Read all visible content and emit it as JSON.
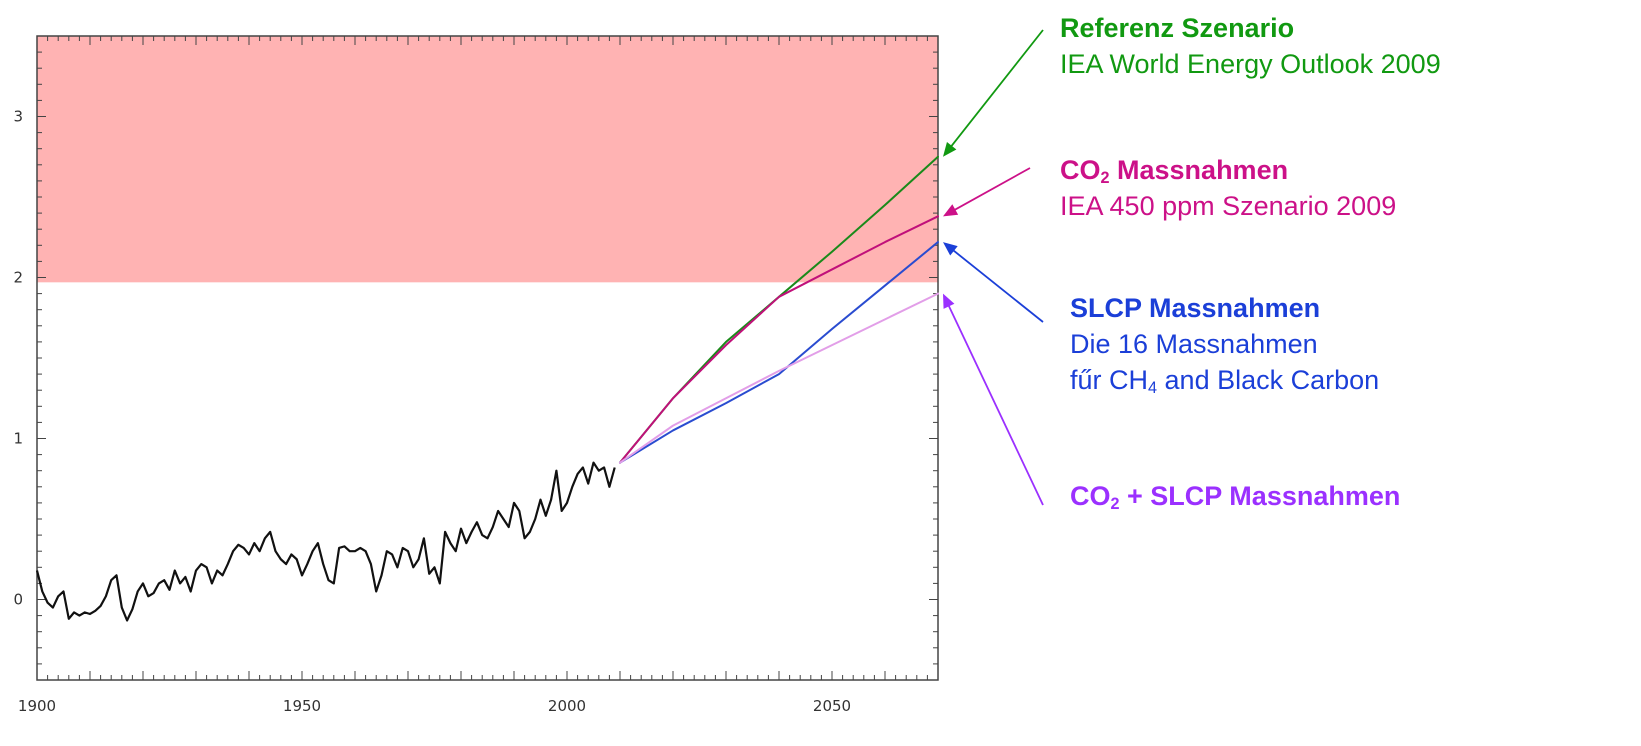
{
  "chart_data": {
    "type": "line",
    "title": "",
    "xlabel": "",
    "ylabel": "",
    "xlim": [
      1900,
      2070
    ],
    "ylim": [
      -0.5,
      3.5
    ],
    "xticks": [
      "1900",
      "1950",
      "2000",
      "2050"
    ],
    "yticks": [
      "0",
      "1",
      "2",
      "3"
    ],
    "grid": false,
    "shaded_region": {
      "y_from": 1.97,
      "y_to": 3.5,
      "color": "#ffb3b3"
    },
    "observed": {
      "color": "#111111",
      "x": [
        1900,
        1901,
        1902,
        1903,
        1904,
        1905,
        1906,
        1907,
        1908,
        1909,
        1910,
        1911,
        1912,
        1913,
        1914,
        1915,
        1916,
        1917,
        1918,
        1919,
        1920,
        1921,
        1922,
        1923,
        1924,
        1925,
        1926,
        1927,
        1928,
        1929,
        1930,
        1931,
        1932,
        1933,
        1934,
        1935,
        1936,
        1937,
        1938,
        1939,
        1940,
        1941,
        1942,
        1943,
        1944,
        1945,
        1946,
        1947,
        1948,
        1949,
        1950,
        1951,
        1952,
        1953,
        1954,
        1955,
        1956,
        1957,
        1958,
        1959,
        1960,
        1961,
        1962,
        1963,
        1964,
        1965,
        1966,
        1967,
        1968,
        1969,
        1970,
        1971,
        1972,
        1973,
        1974,
        1975,
        1976,
        1977,
        1978,
        1979,
        1980,
        1981,
        1982,
        1983,
        1984,
        1985,
        1986,
        1987,
        1988,
        1989,
        1990,
        1991,
        1992,
        1993,
        1994,
        1995,
        1996,
        1997,
        1998,
        1999,
        2000,
        2001,
        2002,
        2003,
        2004,
        2005,
        2006,
        2007,
        2008,
        2009
      ],
      "y": [
        0.18,
        0.05,
        -0.02,
        -0.05,
        0.02,
        0.05,
        -0.12,
        -0.08,
        -0.1,
        -0.08,
        -0.09,
        -0.07,
        -0.04,
        0.02,
        0.12,
        0.15,
        -0.05,
        -0.13,
        -0.06,
        0.05,
        0.1,
        0.02,
        0.04,
        0.1,
        0.12,
        0.06,
        0.18,
        0.1,
        0.14,
        0.05,
        0.18,
        0.22,
        0.2,
        0.1,
        0.18,
        0.15,
        0.22,
        0.3,
        0.34,
        0.32,
        0.28,
        0.35,
        0.3,
        0.38,
        0.42,
        0.3,
        0.25,
        0.22,
        0.28,
        0.25,
        0.15,
        0.22,
        0.3,
        0.35,
        0.22,
        0.12,
        0.1,
        0.32,
        0.33,
        0.3,
        0.3,
        0.32,
        0.3,
        0.22,
        0.05,
        0.15,
        0.3,
        0.28,
        0.2,
        0.32,
        0.3,
        0.2,
        0.25,
        0.38,
        0.16,
        0.2,
        0.1,
        0.42,
        0.35,
        0.3,
        0.44,
        0.35,
        0.42,
        0.48,
        0.4,
        0.38,
        0.45,
        0.55,
        0.5,
        0.45,
        0.6,
        0.55,
        0.38,
        0.42,
        0.5,
        0.62,
        0.52,
        0.62,
        0.8,
        0.55,
        0.6,
        0.7,
        0.78,
        0.82,
        0.72,
        0.85,
        0.8,
        0.82,
        0.7,
        0.82
      ]
    },
    "series": [
      {
        "color": "#1a8a1a",
        "x": [
          2010,
          2020,
          2030,
          2040,
          2050,
          2060,
          2070
        ],
        "y": [
          0.85,
          1.25,
          1.6,
          1.88,
          2.16,
          2.45,
          2.75
        ]
      },
      {
        "color": "#c0107a",
        "x": [
          2010,
          2020,
          2030,
          2040,
          2050,
          2060,
          2070
        ],
        "y": [
          0.85,
          1.25,
          1.58,
          1.88,
          2.05,
          2.22,
          2.38
        ]
      },
      {
        "color": "#2a4cd0",
        "x": [
          2010,
          2020,
          2030,
          2040,
          2050,
          2060,
          2070
        ],
        "y": [
          0.85,
          1.05,
          1.22,
          1.4,
          1.68,
          1.95,
          2.22
        ]
      },
      {
        "color": "#e29ee8",
        "x": [
          2010,
          2020,
          2030,
          2040,
          2050,
          2060,
          2070
        ],
        "y": [
          0.85,
          1.08,
          1.25,
          1.42,
          1.58,
          1.74,
          1.9
        ]
      }
    ]
  },
  "annotations": [
    {
      "color": "#119911",
      "title_parts": [
        "Referenz Szenario"
      ],
      "lines": [
        [
          "IEA World Energy Outlook 2009"
        ]
      ],
      "arrow_to_series": 0
    },
    {
      "color": "#cc1188",
      "title_parts": [
        "CO",
        "2",
        " Massnahmen"
      ],
      "lines": [
        [
          "IEA 450 ppm Szenario 2009"
        ]
      ],
      "arrow_to_series": 1
    },
    {
      "color": "#1b3fd8",
      "title_parts": [
        "SLCP Massnahmen"
      ],
      "lines": [
        [
          "Die 16 Massnahmen"
        ],
        [
          "fűr CH",
          "4",
          " and Black Carbon"
        ]
      ],
      "arrow_to_series": 2
    },
    {
      "color": "#9b30ff",
      "title_parts": [
        "CO",
        "2",
        " + SLCP Massnahmen"
      ],
      "lines": [],
      "arrow_to_series": 3
    }
  ]
}
